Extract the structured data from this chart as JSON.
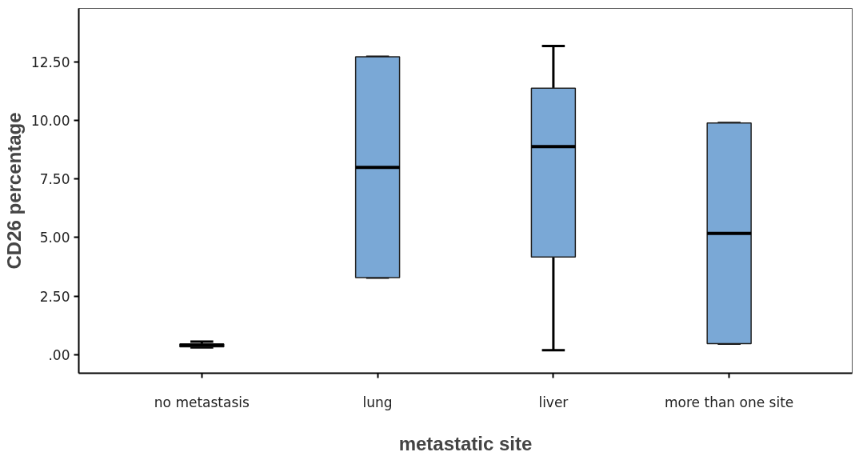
{
  "chart_data": {
    "type": "box",
    "xlabel": "metastatic site",
    "ylabel": "CD26 percentage",
    "categories": [
      "no metastasis",
      "lung",
      "liver",
      "more than one site"
    ],
    "series": [
      {
        "color": "#7aa8d6",
        "boxes": [
          {
            "low": 0.3,
            "q1": 0.33,
            "median": 0.4,
            "q3": 0.45,
            "high": 0.55
          },
          {
            "low": 3.29,
            "q1": 3.29,
            "median": 8.0,
            "q3": 12.73,
            "high": 12.73
          },
          {
            "low": 0.18,
            "q1": 4.17,
            "median": 8.89,
            "q3": 11.39,
            "high": 13.19
          },
          {
            "low": 0.47,
            "q1": 0.47,
            "median": 5.18,
            "q3": 9.9,
            "high": 9.9
          }
        ]
      }
    ],
    "ylim": [
      -0.8,
      14.8
    ],
    "yticks": [
      {
        "value": 0,
        "label": ".00"
      },
      {
        "value": 2.5,
        "label": "2.50"
      },
      {
        "value": 5,
        "label": "5.00"
      },
      {
        "value": 7.5,
        "label": "7.50"
      },
      {
        "value": 10,
        "label": "10.00"
      },
      {
        "value": 12.5,
        "label": "12.50"
      }
    ],
    "grid": false
  }
}
